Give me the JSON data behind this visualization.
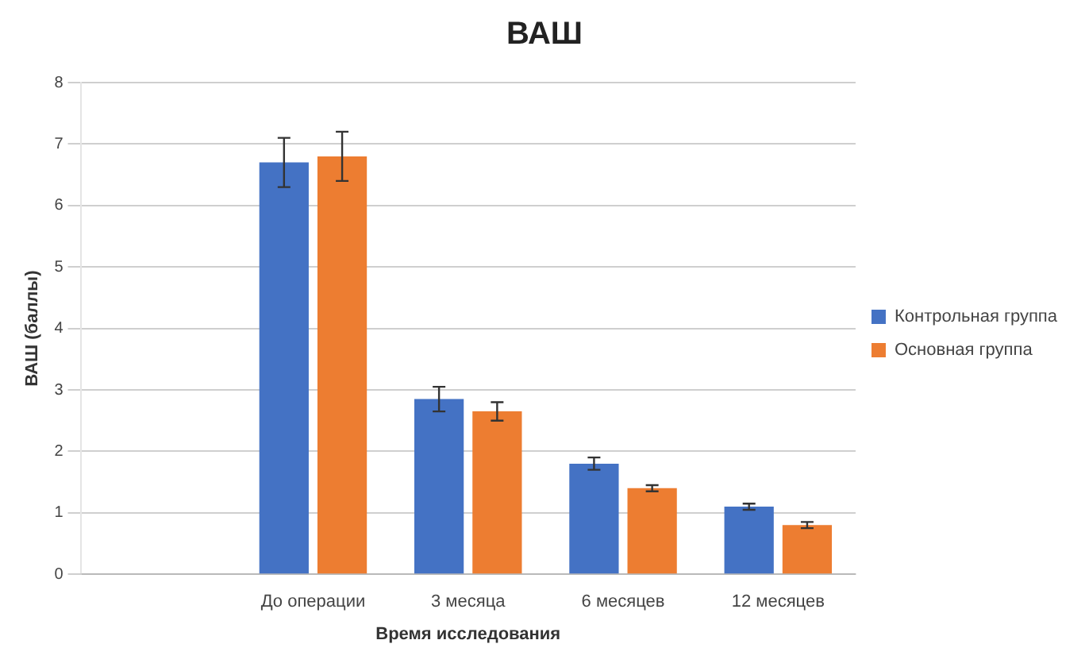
{
  "chart_data": {
    "type": "bar",
    "title": "ВАШ",
    "xlabel": "Время исследования",
    "ylabel": "ВАШ (баллы)",
    "categories": [
      null,
      "До операции",
      "3 месяца",
      "6 месяцев",
      "12 месяцев"
    ],
    "series": [
      {
        "name": "Контрольная группа",
        "color": "#4472c4",
        "values": [
          null,
          6.7,
          2.85,
          1.8,
          1.1
        ],
        "errors": [
          null,
          0.4,
          0.2,
          0.1,
          0.05
        ]
      },
      {
        "name": "Основная группа",
        "color": "#ed7d31",
        "values": [
          null,
          6.8,
          2.65,
          1.4,
          0.8
        ],
        "errors": [
          null,
          0.4,
          0.15,
          0.05,
          0.05
        ]
      }
    ],
    "ylim": [
      0,
      8
    ],
    "yticks": [
      0,
      1,
      2,
      3,
      4,
      5,
      6,
      7,
      8
    ],
    "grid": "y",
    "legend": "right"
  }
}
